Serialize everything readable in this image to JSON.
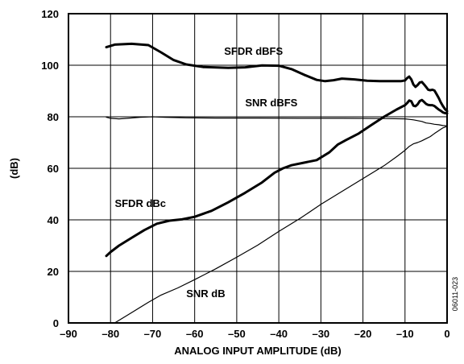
{
  "chart_data": {
    "type": "line",
    "title": "",
    "xlabel": "ANALOG INPUT AMPLITUDE (dB)",
    "ylabel": "(dB)",
    "xlim": [
      -90,
      0
    ],
    "ylim": [
      0,
      120
    ],
    "x_ticks": [
      -90,
      -80,
      -70,
      -60,
      -50,
      -40,
      -30,
      -20,
      -10,
      0
    ],
    "x_tick_labels": [
      "–90",
      "–80",
      "–70",
      "–60",
      "–50",
      "–40",
      "–30",
      "–20",
      "–10",
      "0"
    ],
    "y_ticks": [
      0,
      20,
      40,
      60,
      80,
      100,
      120
    ],
    "y_tick_labels": [
      "0",
      "20",
      "40",
      "60",
      "80",
      "100",
      "120"
    ],
    "grid": true,
    "figure_id": "06011-023",
    "series": [
      {
        "name": "SFDR dBFS",
        "weight": "thick",
        "label_at": [
          -53,
          104
        ],
        "points": [
          [
            -81,
            107
          ],
          [
            -79,
            108
          ],
          [
            -75,
            108.3
          ],
          [
            -71,
            107.8
          ],
          [
            -68,
            105
          ],
          [
            -65,
            102
          ],
          [
            -62,
            100.3
          ],
          [
            -58,
            99.3
          ],
          [
            -52,
            99
          ],
          [
            -48,
            99.2
          ],
          [
            -44,
            99.9
          ],
          [
            -40,
            99.8
          ],
          [
            -37,
            98.5
          ],
          [
            -34,
            96.3
          ],
          [
            -31,
            94.3
          ],
          [
            -29,
            93.8
          ],
          [
            -27,
            94.2
          ],
          [
            -25,
            94.8
          ],
          [
            -22,
            94.5
          ],
          [
            -19,
            94
          ],
          [
            -16,
            93.8
          ],
          [
            -13,
            93.8
          ],
          [
            -11,
            93.8
          ],
          [
            -10,
            94.1
          ],
          [
            -9.5,
            95
          ],
          [
            -9,
            95.6
          ],
          [
            -8.5,
            94.5
          ],
          [
            -8,
            92.5
          ],
          [
            -7.5,
            91.6
          ],
          [
            -7,
            92.3
          ],
          [
            -6.5,
            93.3
          ],
          [
            -6,
            93.5
          ],
          [
            -5.5,
            92.6
          ],
          [
            -5,
            91.6
          ],
          [
            -4.5,
            90.5
          ],
          [
            -4,
            90.3
          ],
          [
            -3.5,
            90.5
          ],
          [
            -3,
            90.2
          ],
          [
            -2.5,
            88.8
          ],
          [
            -2,
            87.3
          ],
          [
            -1.5,
            85.6
          ],
          [
            -1,
            84.2
          ],
          [
            -0.5,
            83
          ],
          [
            0,
            82.2
          ]
        ]
      },
      {
        "name": "SNR dBFS",
        "weight": "thin",
        "label_at": [
          -48,
          84
        ],
        "points": [
          [
            -81,
            79.8
          ],
          [
            -80,
            79.4
          ],
          [
            -78,
            79.2
          ],
          [
            -76,
            79.4
          ],
          [
            -73,
            79.8
          ],
          [
            -70,
            80
          ],
          [
            -67,
            79.8
          ],
          [
            -62,
            79.6
          ],
          [
            -55,
            79.5
          ],
          [
            -45,
            79.5
          ],
          [
            -35,
            79.4
          ],
          [
            -25,
            79.4
          ],
          [
            -15,
            79.3
          ],
          [
            -10,
            79.2
          ],
          [
            -8,
            78.8
          ],
          [
            -6,
            78.2
          ],
          [
            -5,
            77.6
          ],
          [
            -4,
            77.4
          ],
          [
            -3,
            77.1
          ],
          [
            -2,
            76.9
          ],
          [
            -1,
            76.6
          ],
          [
            0,
            76.5
          ]
        ]
      },
      {
        "name": "SFDR dBc",
        "weight": "thick",
        "label_at": [
          -79,
          45
        ],
        "points": [
          [
            -81,
            26
          ],
          [
            -80,
            27.5
          ],
          [
            -78,
            30
          ],
          [
            -75,
            33
          ],
          [
            -72,
            36
          ],
          [
            -69,
            38.5
          ],
          [
            -66,
            39.7
          ],
          [
            -63,
            40.2
          ],
          [
            -60,
            41.2
          ],
          [
            -56,
            43.5
          ],
          [
            -52,
            46.8
          ],
          [
            -48,
            50.5
          ],
          [
            -44,
            54.5
          ],
          [
            -41,
            58.3
          ],
          [
            -39,
            60
          ],
          [
            -37,
            61.2
          ],
          [
            -34,
            62.2
          ],
          [
            -31,
            63.2
          ],
          [
            -28,
            66.2
          ],
          [
            -26,
            69.2
          ],
          [
            -24,
            71
          ],
          [
            -21,
            73.5
          ],
          [
            -18,
            76.8
          ],
          [
            -15,
            80
          ],
          [
            -12,
            82.8
          ],
          [
            -10,
            84.5
          ],
          [
            -9.5,
            85.3
          ],
          [
            -9,
            86.3
          ],
          [
            -8.5,
            86
          ],
          [
            -8,
            84.3
          ],
          [
            -7.5,
            84.1
          ],
          [
            -7,
            84.8
          ],
          [
            -6.5,
            86.1
          ],
          [
            -6,
            86.5
          ],
          [
            -5.5,
            85.8
          ],
          [
            -5,
            85
          ],
          [
            -4.5,
            84.6
          ],
          [
            -4,
            84.5
          ],
          [
            -3.5,
            84.5
          ],
          [
            -3,
            84.2
          ],
          [
            -2.5,
            83.5
          ],
          [
            -2,
            82.8
          ],
          [
            -1.5,
            82.3
          ],
          [
            -1,
            81.7
          ],
          [
            -0.5,
            81.4
          ],
          [
            0,
            81.3
          ]
        ]
      },
      {
        "name": "SNR dB",
        "weight": "thin",
        "label_at": [
          -62,
          10
        ],
        "points": [
          [
            -79,
            0
          ],
          [
            -75,
            4
          ],
          [
            -71,
            8
          ],
          [
            -68,
            10.8
          ],
          [
            -64,
            13.6
          ],
          [
            -60,
            16.8
          ],
          [
            -55,
            21
          ],
          [
            -50,
            25.5
          ],
          [
            -45,
            30.2
          ],
          [
            -40,
            35.5
          ],
          [
            -35,
            40.5
          ],
          [
            -30,
            46
          ],
          [
            -25,
            51
          ],
          [
            -20,
            56
          ],
          [
            -15,
            61
          ],
          [
            -12,
            64.5
          ],
          [
            -10,
            67
          ],
          [
            -9,
            68.5
          ],
          [
            -8,
            69.5
          ],
          [
            -7,
            70
          ],
          [
            -6,
            70.7
          ],
          [
            -5,
            71.5
          ],
          [
            -4,
            72.3
          ],
          [
            -3,
            73.5
          ],
          [
            -2,
            74.6
          ],
          [
            -1,
            75.7
          ],
          [
            0,
            76.3
          ]
        ]
      }
    ]
  }
}
